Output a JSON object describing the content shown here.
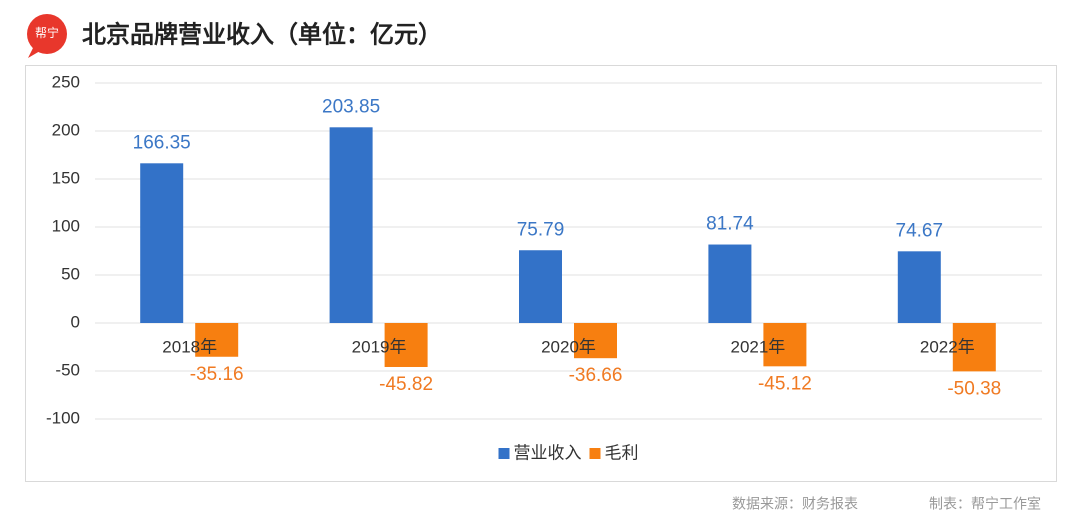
{
  "chart_data": {
    "type": "bar",
    "title": "北京品牌营业收入（单位：亿元）",
    "logo_text": "帮宁",
    "categories": [
      "2018年",
      "2019年",
      "2020年",
      "2021年",
      "2022年"
    ],
    "series": [
      {
        "name": "营业收入",
        "color": "#3372c8",
        "label_color": "#3b77c6",
        "values": [
          166.35,
          203.85,
          75.79,
          81.74,
          74.67
        ]
      },
      {
        "name": "毛利",
        "color": "#f77f10",
        "label_color": "#f07a22",
        "values": [
          -35.16,
          -45.82,
          -36.66,
          -45.12,
          -50.38
        ]
      }
    ],
    "ylim": [
      -100,
      250
    ],
    "yticks": [
      -100,
      -50,
      0,
      50,
      100,
      150,
      200,
      250
    ],
    "grid": true,
    "legend": "bottom",
    "source": "数据来源：财务报表",
    "credit": "制表：帮宁工作室"
  }
}
